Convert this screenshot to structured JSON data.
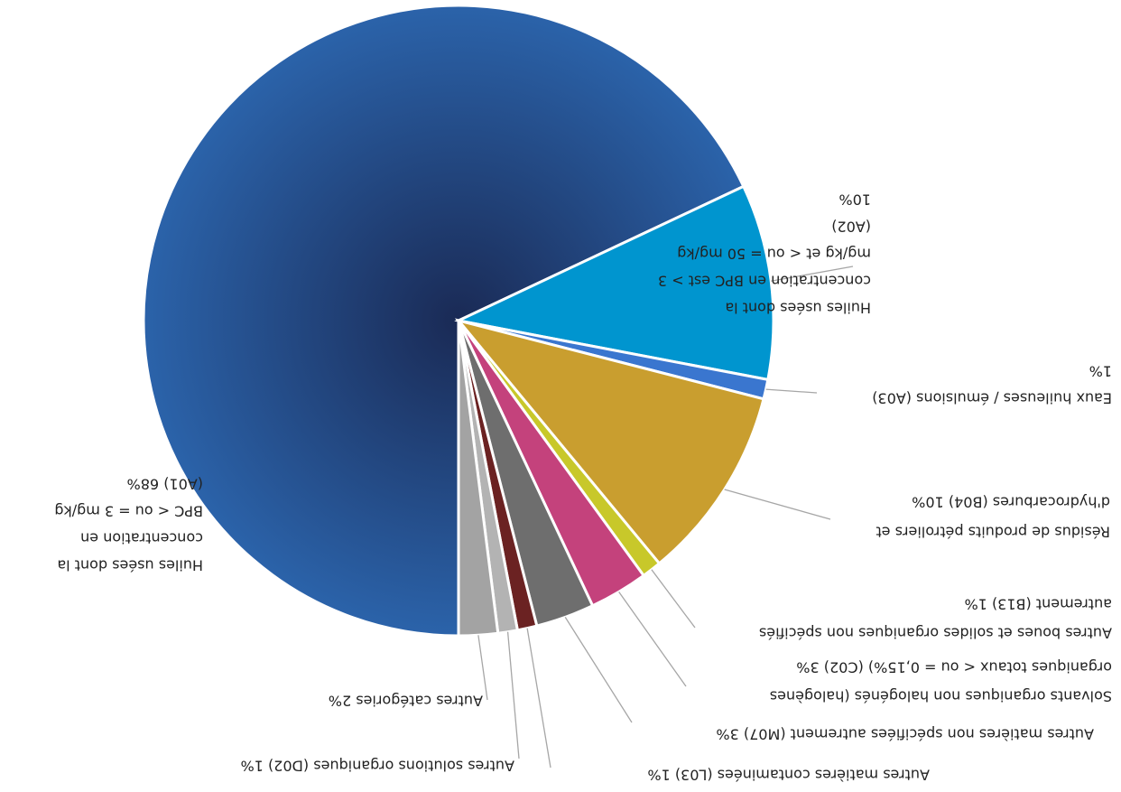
{
  "chart_data": {
    "type": "pie",
    "labels": [
      [
        "Huiles usées dont la",
        "concentration en",
        "BPC < ou = 3 mg/kg",
        "(A01) 68%"
      ],
      [
        "Huiles usées dont la",
        "concentration en BPC est > 3",
        "mg/kg et < ou = 50 mg/kg",
        "(A02)",
        "10%"
      ],
      [
        "Eaux huileuses / émulsions (A03)",
        "1%"
      ],
      [
        "Résidus de produits pétroliers et",
        "d'hydrocarbures (B04) 10%"
      ],
      [
        "Autres boues et solides organiques non spécifiés",
        "autrement  (B13) 1%"
      ],
      [
        "Solvants organiques non halogénés (halogènes",
        "organiques totaux < ou = 0,15%) (C02) 3%"
      ],
      [
        "Autres matières non spécifiées autrement  (M07) 3%"
      ],
      [
        "Autres matières contaminées  (L03) 1%"
      ],
      [
        "Autres solutions organiques  (D02) 1%"
      ],
      [
        "Autres catégories 2%"
      ]
    ],
    "values": [
      68,
      10,
      1,
      10,
      1,
      3,
      3,
      1,
      1,
      2
    ],
    "colors": [
      "#2a5da3",
      "#0095cf",
      "#3a76cf",
      "#c99e2f",
      "#c8c82a",
      "#c4427c",
      "#6e6e6e",
      "#6b2222",
      "#b3b3b3",
      "#a3a3a3"
    ]
  }
}
